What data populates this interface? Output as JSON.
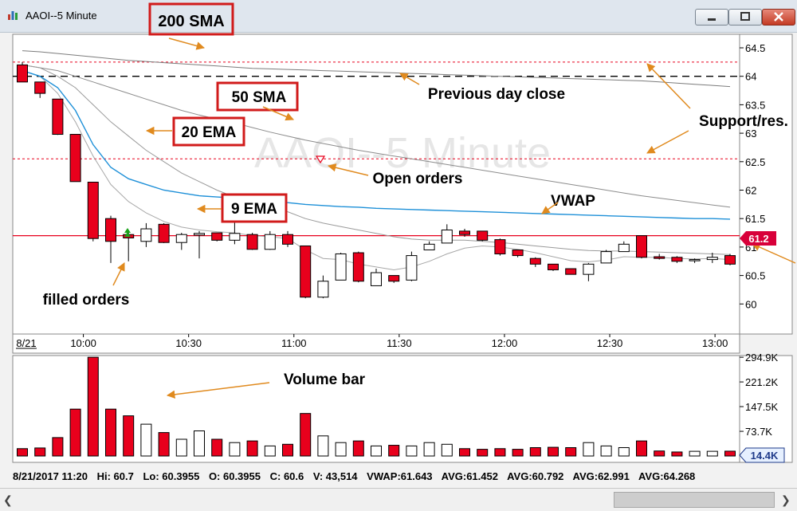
{
  "window": {
    "title": "AAOI--5 Minute",
    "watermark": "AAOI--5 Minute"
  },
  "colors": {
    "down": "#e8001c",
    "up": "#ffffff",
    "vwap": "#1e90d8",
    "sma200": "#7c7c7c",
    "sma50": "#8c8c8c",
    "ema20": "#9a9a9a",
    "ema9": "#a8a8a8",
    "support": "#e8001c",
    "prev_close": "#000000",
    "arrow": "#e08a1e",
    "label_box": "#d11b1b",
    "filled": "#1aa31a"
  },
  "annotations": {
    "sma200": "200 SMA",
    "sma50": "50 SMA",
    "ema20": "20 EMA",
    "ema9": "9 EMA",
    "prev_close": "Previous day close",
    "support": "Support/res.",
    "open_orders": "Open orders",
    "vwap": "VWAP",
    "filled_orders": "filled orders",
    "volume_bar": "Volume bar"
  },
  "chart_data": {
    "type": "candlestick",
    "date_label": "8/21",
    "x_ticks": [
      "10:00",
      "10:30",
      "11:00",
      "11:30",
      "12:00",
      "12:30",
      "13:00"
    ],
    "price_axis": {
      "ticks": [
        "64.5",
        "64",
        "63.5",
        "63",
        "62.5",
        "62",
        "61.5",
        "61",
        "60.5",
        "60"
      ],
      "range": [
        59.7,
        64.7
      ],
      "last_price_marker": "61.2"
    },
    "volume_axis": {
      "ticks": [
        "294.9K",
        "221.2K",
        "147.5K",
        "73.7K"
      ],
      "range": [
        0,
        300000
      ],
      "current_marker": "14.4K"
    },
    "levels": {
      "previous_day_close": 64.0,
      "support_resistance": [
        64.25,
        62.55,
        61.2
      ]
    },
    "open_order_price": 62.55,
    "candles": [
      {
        "o": 64.2,
        "h": 64.25,
        "l": 63.9,
        "c": 63.9,
        "v": 22000
      },
      {
        "o": 63.9,
        "h": 63.9,
        "l": 63.62,
        "c": 63.7,
        "v": 24000
      },
      {
        "o": 63.6,
        "h": 63.6,
        "l": 62.97,
        "c": 62.98,
        "v": 55000
      },
      {
        "o": 62.98,
        "h": 62.98,
        "l": 62.15,
        "c": 62.15,
        "v": 140000
      },
      {
        "o": 62.14,
        "h": 62.14,
        "l": 61.1,
        "c": 61.15,
        "v": 294900
      },
      {
        "o": 61.5,
        "h": 61.55,
        "l": 60.72,
        "c": 61.1,
        "v": 140000
      },
      {
        "o": 61.22,
        "h": 61.28,
        "l": 60.75,
        "c": 61.16,
        "v": 120000
      },
      {
        "o": 61.1,
        "h": 61.42,
        "l": 61.0,
        "c": 61.32,
        "v": 95000
      },
      {
        "o": 61.4,
        "h": 61.42,
        "l": 61.07,
        "c": 61.08,
        "v": 70000
      },
      {
        "o": 61.08,
        "h": 61.25,
        "l": 60.95,
        "c": 61.22,
        "v": 50000
      },
      {
        "o": 61.21,
        "h": 61.28,
        "l": 60.8,
        "c": 61.24,
        "v": 75000
      },
      {
        "o": 61.25,
        "h": 61.25,
        "l": 61.1,
        "c": 61.12,
        "v": 50000
      },
      {
        "o": 61.12,
        "h": 61.45,
        "l": 61.05,
        "c": 61.24,
        "v": 40000
      },
      {
        "o": 61.22,
        "h": 61.25,
        "l": 60.95,
        "c": 60.96,
        "v": 45000
      },
      {
        "o": 60.96,
        "h": 61.28,
        "l": 60.95,
        "c": 61.22,
        "v": 30000
      },
      {
        "o": 61.22,
        "h": 61.28,
        "l": 61.0,
        "c": 61.05,
        "v": 35000
      },
      {
        "o": 61.02,
        "h": 61.02,
        "l": 60.1,
        "c": 60.12,
        "v": 127000
      },
      {
        "o": 60.12,
        "h": 60.5,
        "l": 60.1,
        "c": 60.4,
        "v": 60000
      },
      {
        "o": 60.42,
        "h": 60.9,
        "l": 60.42,
        "c": 60.88,
        "v": 40000
      },
      {
        "o": 60.9,
        "h": 60.92,
        "l": 60.38,
        "c": 60.4,
        "v": 45000
      },
      {
        "o": 60.32,
        "h": 60.62,
        "l": 60.32,
        "c": 60.55,
        "v": 30000
      },
      {
        "o": 60.5,
        "h": 60.5,
        "l": 60.37,
        "c": 60.4,
        "v": 32000
      },
      {
        "o": 60.42,
        "h": 60.92,
        "l": 60.4,
        "c": 60.85,
        "v": 30000
      },
      {
        "o": 60.95,
        "h": 61.1,
        "l": 60.95,
        "c": 61.05,
        "v": 40000
      },
      {
        "o": 61.07,
        "h": 61.4,
        "l": 61.07,
        "c": 61.3,
        "v": 35000
      },
      {
        "o": 61.28,
        "h": 61.32,
        "l": 61.18,
        "c": 61.22,
        "v": 22000
      },
      {
        "o": 61.28,
        "h": 61.28,
        "l": 61.1,
        "c": 61.12,
        "v": 20000
      },
      {
        "o": 61.13,
        "h": 61.15,
        "l": 60.85,
        "c": 60.88,
        "v": 22000
      },
      {
        "o": 60.95,
        "h": 60.95,
        "l": 60.82,
        "c": 60.85,
        "v": 20000
      },
      {
        "o": 60.8,
        "h": 60.82,
        "l": 60.65,
        "c": 60.7,
        "v": 25000
      },
      {
        "o": 60.7,
        "h": 60.7,
        "l": 60.58,
        "c": 60.6,
        "v": 26000
      },
      {
        "o": 60.62,
        "h": 60.62,
        "l": 60.52,
        "c": 60.52,
        "v": 25000
      },
      {
        "o": 60.52,
        "h": 60.72,
        "l": 60.4,
        "c": 60.7,
        "v": 40000
      },
      {
        "o": 60.72,
        "h": 60.95,
        "l": 60.72,
        "c": 60.92,
        "v": 30000
      },
      {
        "o": 60.92,
        "h": 61.1,
        "l": 60.92,
        "c": 61.05,
        "v": 25000
      },
      {
        "o": 61.2,
        "h": 61.2,
        "l": 60.8,
        "c": 60.82,
        "v": 45000
      },
      {
        "o": 60.83,
        "h": 60.88,
        "l": 60.78,
        "c": 60.8,
        "v": 15000
      },
      {
        "o": 60.82,
        "h": 60.84,
        "l": 60.72,
        "c": 60.75,
        "v": 12000
      },
      {
        "o": 60.76,
        "h": 60.8,
        "l": 60.72,
        "c": 60.78,
        "v": 14000
      },
      {
        "o": 60.78,
        "h": 60.9,
        "l": 60.72,
        "c": 60.82,
        "v": 14000
      },
      {
        "o": 60.85,
        "h": 60.88,
        "l": 60.68,
        "c": 60.7,
        "v": 14400
      }
    ],
    "indicators": {
      "vwap": [
        64.1,
        64.0,
        63.8,
        63.4,
        62.8,
        62.4,
        62.2,
        62.1,
        62.0,
        61.95,
        61.9,
        61.88,
        61.86,
        61.83,
        61.8,
        61.78,
        61.75,
        61.73,
        61.71,
        61.7,
        61.68,
        61.67,
        61.66,
        61.65,
        61.64,
        61.63,
        61.62,
        61.61,
        61.6,
        61.59,
        61.58,
        61.57,
        61.56,
        61.55,
        61.54,
        61.53,
        61.52,
        61.51,
        61.5,
        61.5,
        61.49
      ],
      "sma200": [
        64.45,
        64.43,
        64.4,
        64.37,
        64.34,
        64.31,
        64.28,
        64.26,
        64.24,
        64.22,
        64.2,
        64.18,
        64.16,
        64.14,
        64.13,
        64.12,
        64.11,
        64.1,
        64.09,
        64.08,
        64.07,
        64.06,
        64.05,
        64.04,
        64.03,
        64.02,
        64.01,
        64.0,
        63.99,
        63.98,
        63.97,
        63.96,
        63.95,
        63.94,
        63.93,
        63.92,
        63.9,
        63.88,
        63.86,
        63.84,
        63.82
      ],
      "sma50": [
        64.2,
        64.15,
        64.1,
        64.0,
        63.9,
        63.8,
        63.7,
        63.6,
        63.5,
        63.4,
        63.32,
        63.25,
        63.18,
        63.1,
        63.02,
        62.95,
        62.88,
        62.82,
        62.76,
        62.7,
        62.65,
        62.6,
        62.55,
        62.5,
        62.45,
        62.4,
        62.35,
        62.3,
        62.25,
        62.2,
        62.15,
        62.1,
        62.05,
        62.0,
        61.95,
        61.9,
        61.86,
        61.82,
        61.78,
        61.74,
        61.7
      ],
      "ema20": [
        64.2,
        64.15,
        64.0,
        63.8,
        63.5,
        63.2,
        62.95,
        62.7,
        62.5,
        62.3,
        62.15,
        62.0,
        61.88,
        61.78,
        61.7,
        61.62,
        61.5,
        61.42,
        61.36,
        61.3,
        61.24,
        61.18,
        61.14,
        61.12,
        61.12,
        61.12,
        61.1,
        61.08,
        61.05,
        61.02,
        60.99,
        60.96,
        60.94,
        60.93,
        60.93,
        60.92,
        60.91,
        60.9,
        60.89,
        60.88,
        60.87
      ],
      "ema9": [
        64.1,
        64.0,
        63.7,
        63.2,
        62.6,
        62.1,
        61.8,
        61.6,
        61.45,
        61.35,
        61.3,
        61.27,
        61.25,
        61.2,
        61.18,
        61.15,
        60.95,
        60.8,
        60.78,
        60.7,
        60.65,
        60.6,
        60.65,
        60.75,
        60.88,
        60.98,
        61.02,
        61.0,
        60.96,
        60.9,
        60.83,
        60.76,
        60.74,
        60.77,
        60.83,
        60.82,
        60.82,
        60.8,
        60.79,
        60.8,
        60.78
      ]
    }
  },
  "status_bar": {
    "date_time": "8/21/2017 11:20",
    "hi": "Hi: 60.7",
    "lo": "Lo: 60.3955",
    "open": "O: 60.3955",
    "close": "C: 60.6",
    "volume": "V: 43,514",
    "vwap": "VWAP:61.643",
    "avg1": "AVG:61.452",
    "avg2": "AVG:60.792",
    "avg3": "AVG:62.991",
    "avg4": "AVG:64.268"
  }
}
